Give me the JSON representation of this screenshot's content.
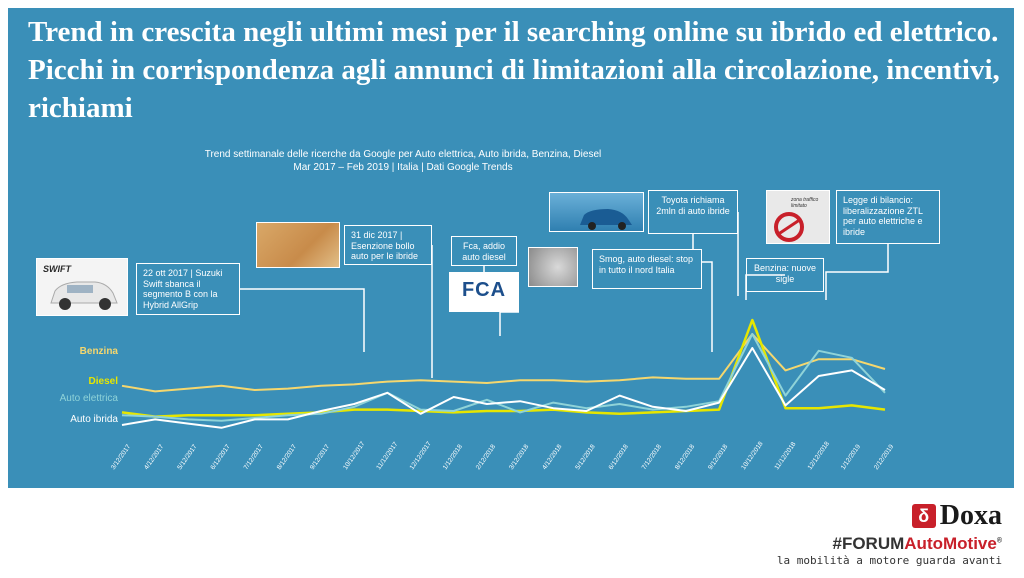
{
  "headline": "Trend in crescita negli ultimi mesi per il searching online su ibrido ed elettrico. Picchi in corrispondenza agli annunci di limitazioni alla circolazione, incentivi, richiami",
  "chart_data": {
    "type": "line",
    "title": "Trend settimanale delle ricerche da Google per Auto elettrica, Auto ibrida, Benzina, Diesel",
    "subtitle": "Mar 2017 – Feb 2019 | Italia | Dati Google Trends",
    "x": [
      "3/12/2017",
      "4/12/2017",
      "5/12/2017",
      "6/12/2017",
      "7/12/2017",
      "8/12/2017",
      "9/12/2017",
      "10/12/2017",
      "11/12/2017",
      "12/12/2017",
      "1/12/2018",
      "2/12/2018",
      "3/12/2018",
      "4/12/2018",
      "5/12/2018",
      "6/12/2018",
      "7/12/2018",
      "8/12/2018",
      "9/12/2018",
      "10/12/2018",
      "11/12/2018",
      "12/12/2018",
      "1/12/2019",
      "2/12/2019"
    ],
    "ylim": [
      0,
      100
    ],
    "grid": false,
    "series": [
      {
        "name": "Benzina",
        "color": "#f5d76e",
        "values": [
          33,
          29,
          31,
          33,
          30,
          31,
          33,
          34,
          36,
          37,
          36,
          35,
          37,
          37,
          36,
          37,
          39,
          38,
          38,
          70,
          44,
          52,
          52,
          45
        ]
      },
      {
        "name": "Diesel",
        "color": "#e6e600",
        "values": [
          14,
          11,
          12,
          12,
          12,
          13,
          14,
          16,
          16,
          15,
          14,
          15,
          15,
          16,
          14,
          13,
          14,
          15,
          16,
          80,
          17,
          17,
          19,
          16
        ]
      },
      {
        "name": "Auto elettrica",
        "color": "#8fd3d8",
        "values": [
          12,
          11,
          9,
          8,
          10,
          12,
          13,
          18,
          28,
          16,
          15,
          23,
          14,
          21,
          17,
          20,
          16,
          18,
          22,
          70,
          26,
          58,
          53,
          28
        ]
      },
      {
        "name": "Auto ibrida",
        "color": "#ffffff",
        "values": [
          5,
          9,
          6,
          3,
          9,
          9,
          15,
          20,
          28,
          13,
          25,
          20,
          22,
          17,
          15,
          26,
          18,
          15,
          21,
          60,
          19,
          40,
          44,
          30
        ]
      }
    ],
    "annotations": [
      {
        "text": "22 ott 2017 | Suzuki Swift sbanca il segmento B con la Hybrid AllGrip",
        "x": "10/12/2017"
      },
      {
        "text": "31 dic 2017 | Esenzione bollo auto per le ibride",
        "x": "12/12/2017"
      },
      {
        "text": "Fca, addio auto diesel",
        "x": "2/12/2018"
      },
      {
        "text": "Smog, auto diesel: stop in tutto il nord Italia",
        "x": "8/12/2018"
      },
      {
        "text": "Toyota richiama 2mln di auto ibride",
        "x": "10/12/2018"
      },
      {
        "text": "Benzina: nuove sigle",
        "x": "10/12/2018"
      },
      {
        "text": "Legge di bilancio: liberalizzazione ZTL per auto elettriche e ibride",
        "x": "12/12/2018"
      }
    ]
  },
  "images": {
    "swift_logo": "SWIFT",
    "fca_logo": "FCA",
    "zona_sign": "zona traffico limitato"
  },
  "footer": {
    "doxa": "Doxa",
    "forum_prefix": "#FORUM",
    "forum_brand": "AutoMotive",
    "registered": "®",
    "tagline": "la mobilità a motore guarda avanti"
  }
}
